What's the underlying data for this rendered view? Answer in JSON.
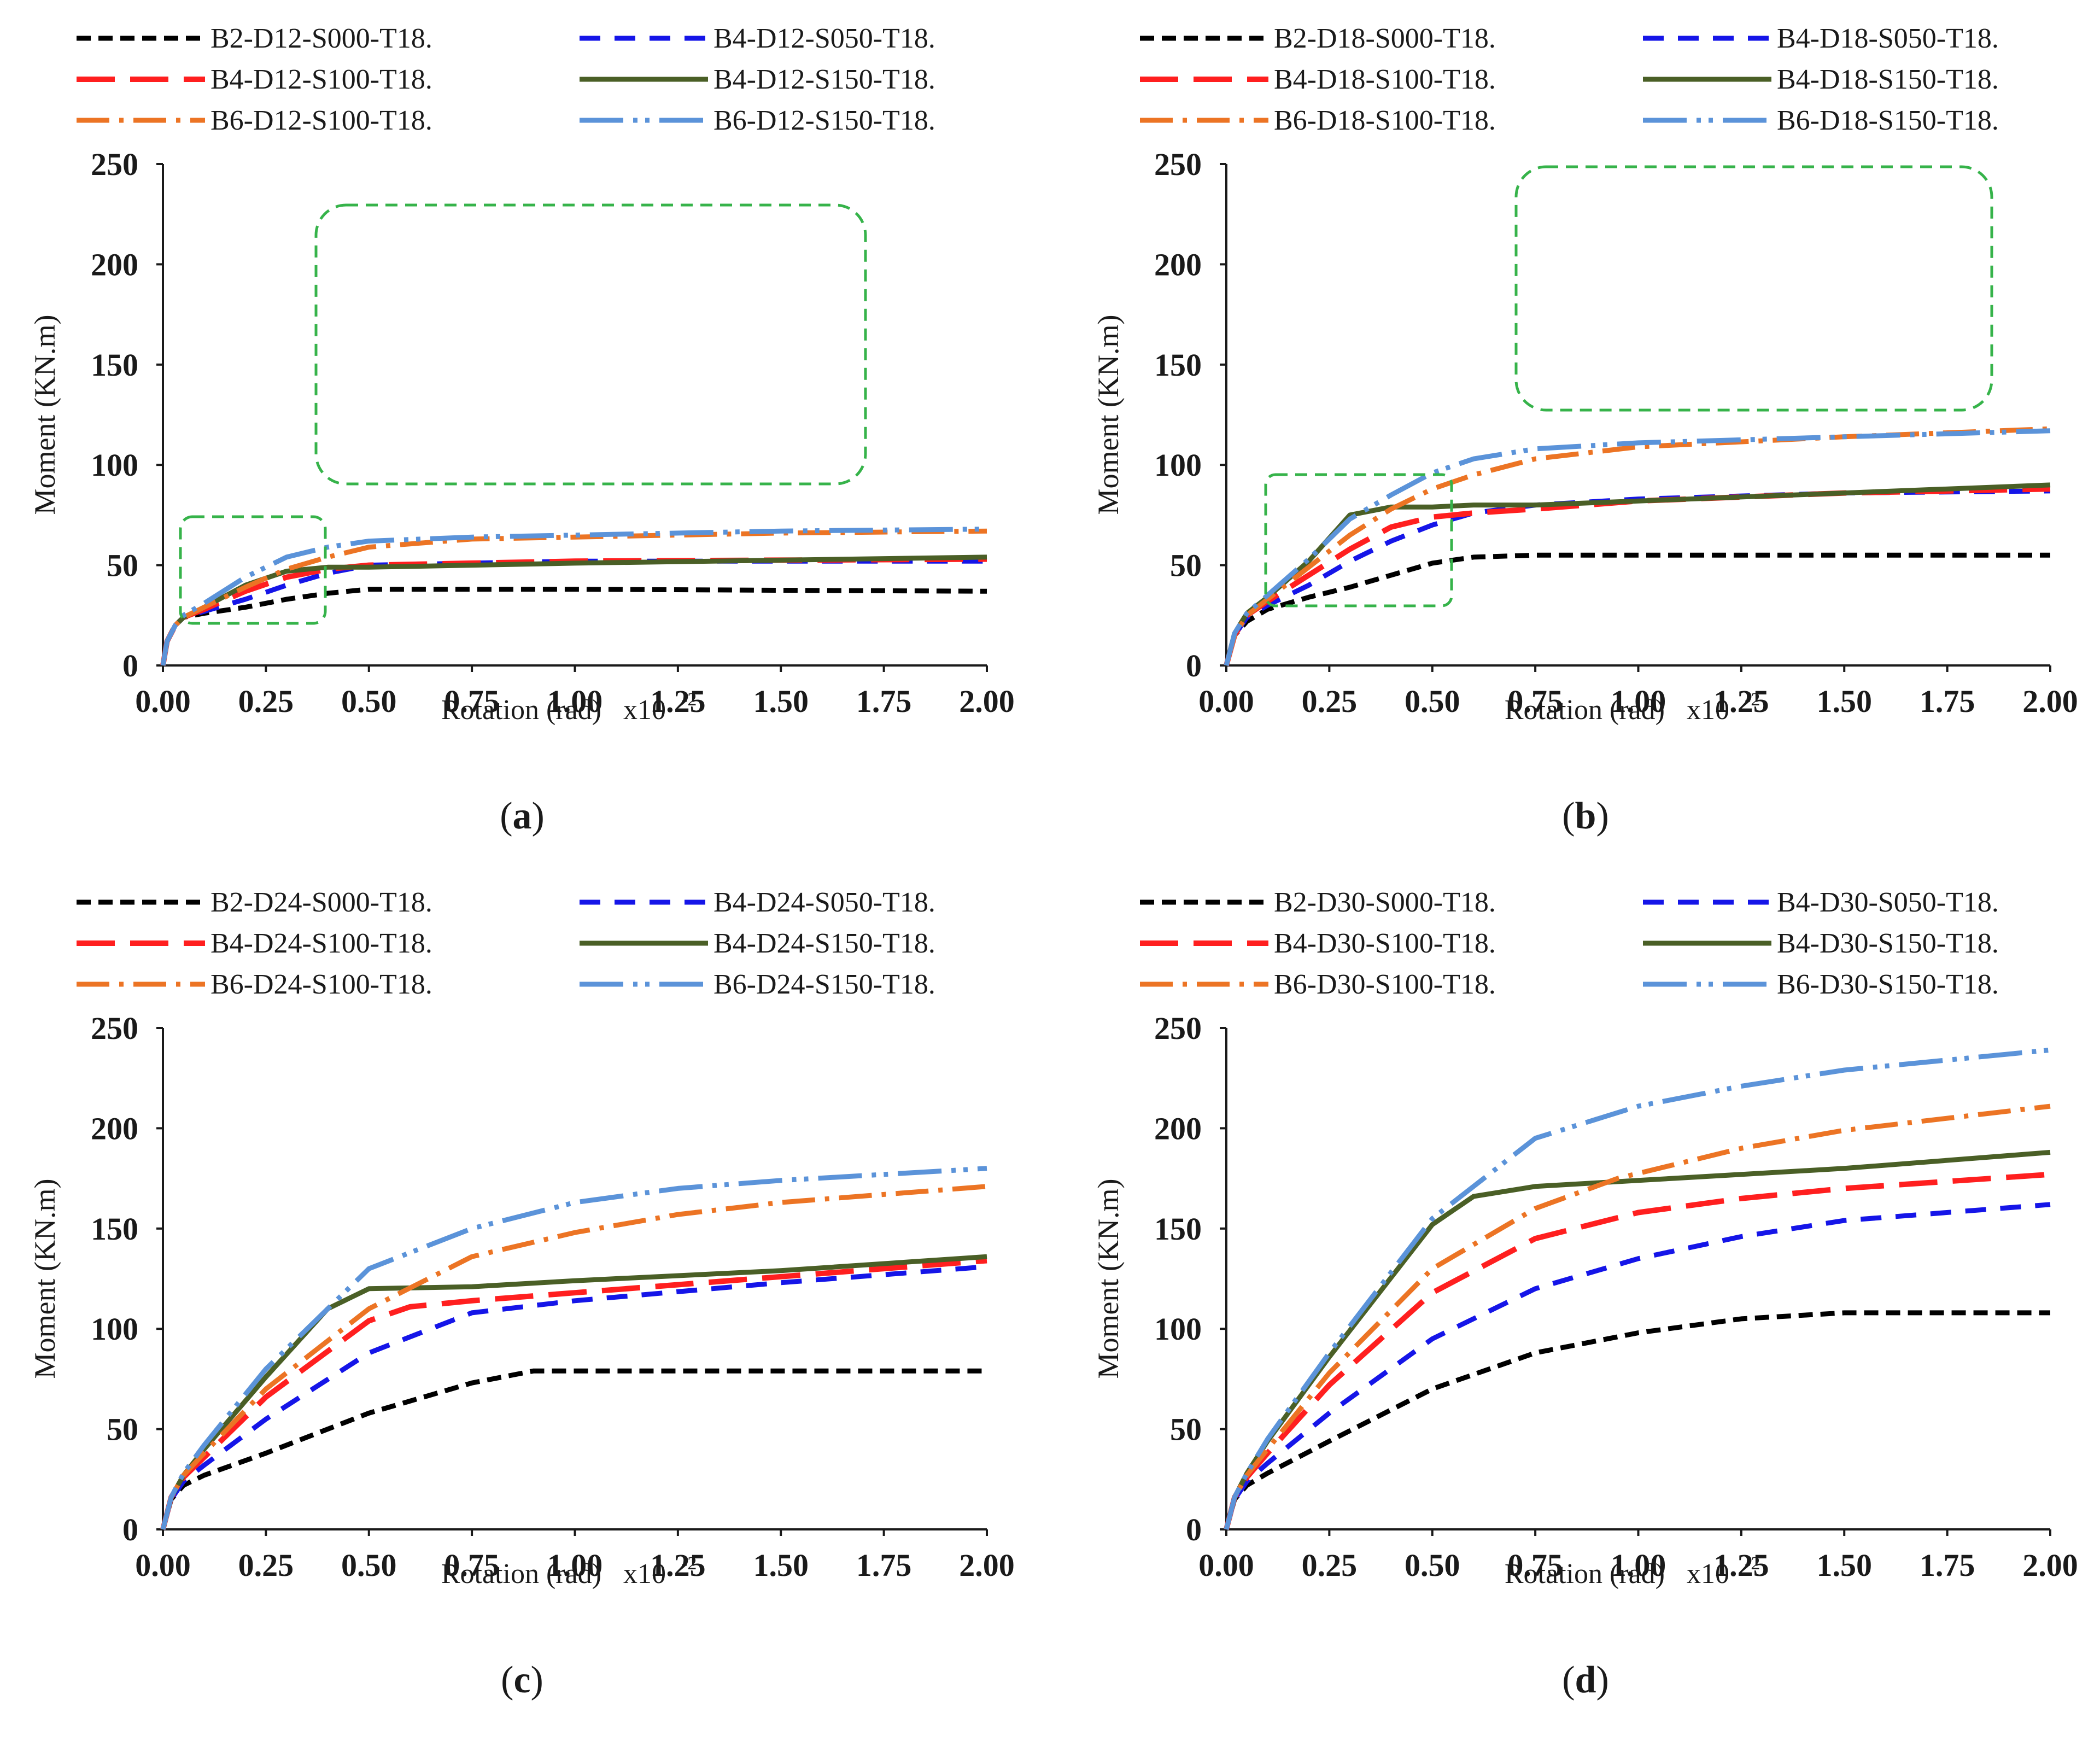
{
  "figure": {
    "axis_style": {
      "xlabel": "Rotation (rad)",
      "xlabel_scale": "x10",
      "xlabel_scale_exp": "-2",
      "ylabel": "Moment (KN.m)"
    },
    "series_styles": [
      {
        "key": "s1",
        "color": "#000000",
        "dash": "26 14",
        "width": 9
      },
      {
        "key": "s2",
        "color": "#1515e8",
        "dash": "38 26",
        "width": 9
      },
      {
        "key": "s3",
        "color": "#ff1f1f",
        "dash": "70 28",
        "width": 10
      },
      {
        "key": "s4",
        "color": "#4a5f26",
        "dash": "",
        "width": 9
      },
      {
        "key": "s5",
        "color": "#ec7424",
        "dash": "60 18 8 18",
        "width": 9
      },
      {
        "key": "s6",
        "color": "#5b93d9",
        "dash": "80 18 8 14 8 18",
        "width": 9
      }
    ]
  },
  "chart_data": [
    {
      "type": "line",
      "panel_label": "a",
      "xlabel": "Rotation (rad)",
      "ylabel": "Moment (KN.m)",
      "xlim": [
        0,
        2
      ],
      "ylim": [
        0,
        250
      ],
      "xticks": [
        "0.00",
        "0.25",
        "0.50",
        "0.75",
        "1.00",
        "1.25",
        "1.50",
        "1.75",
        "2.00"
      ],
      "yticks": [
        "0",
        "50",
        "100",
        "150",
        "200",
        "250"
      ],
      "legend": [
        "B2-D12-S000-T18.",
        "B4-D12-S050-T18.",
        "B4-D12-S100-T18.",
        "B4-D12-S150-T18.",
        "B6-D12-S100-T18.",
        "B6-D12-S150-T18."
      ],
      "series": [
        {
          "name": "B2-D12-S000-T18.",
          "x": [
            0,
            0.01,
            0.03,
            0.05,
            0.1,
            0.2,
            0.3,
            0.4,
            0.5,
            0.6,
            1.0,
            1.5,
            2.0
          ],
          "y": [
            0,
            12,
            20,
            24,
            26,
            29,
            33,
            36,
            38,
            38,
            38,
            37.5,
            37
          ]
        },
        {
          "name": "B4-D12-S050-T18.",
          "x": [
            0,
            0.01,
            0.03,
            0.05,
            0.1,
            0.2,
            0.3,
            0.4,
            0.5,
            0.75,
            1.0,
            1.5,
            2.0
          ],
          "y": [
            0,
            12,
            20,
            24,
            27,
            33,
            40,
            46,
            50,
            51,
            52,
            52,
            52
          ]
        },
        {
          "name": "B4-D12-S100-T18.",
          "x": [
            0,
            0.01,
            0.03,
            0.05,
            0.1,
            0.2,
            0.3,
            0.4,
            0.5,
            0.75,
            1.0,
            1.5,
            2.0
          ],
          "y": [
            0,
            12,
            20,
            24,
            28,
            37,
            44,
            48,
            50,
            51,
            52,
            52.5,
            53
          ]
        },
        {
          "name": "B4-D12-S150-T18.",
          "x": [
            0,
            0.01,
            0.03,
            0.05,
            0.1,
            0.2,
            0.3,
            0.4,
            0.5,
            0.75,
            1.0,
            1.5,
            2.0
          ],
          "y": [
            0,
            12,
            20,
            24,
            29,
            40,
            47,
            49,
            49,
            50,
            51,
            52.5,
            54
          ]
        },
        {
          "name": "B6-D12-S100-T18.",
          "x": [
            0,
            0.01,
            0.03,
            0.05,
            0.1,
            0.2,
            0.3,
            0.4,
            0.5,
            0.75,
            1.0,
            1.5,
            2.0
          ],
          "y": [
            0,
            12,
            20,
            24,
            29,
            39,
            48,
            54,
            59,
            63,
            64,
            66,
            67
          ]
        },
        {
          "name": "B6-D12-S150-T18.",
          "x": [
            0,
            0.01,
            0.03,
            0.05,
            0.1,
            0.2,
            0.3,
            0.4,
            0.5,
            0.75,
            1.0,
            1.5,
            2.0
          ],
          "y": [
            0,
            12,
            20,
            25,
            31,
            44,
            54,
            59,
            62,
            64,
            65,
            67,
            68
          ]
        }
      ]
    },
    {
      "type": "line",
      "panel_label": "b",
      "xlabel": "Rotation (rad)",
      "ylabel": "Moment (KN.m)",
      "xlim": [
        0,
        2
      ],
      "ylim": [
        0,
        250
      ],
      "xticks": [
        "0.00",
        "0.25",
        "0.50",
        "0.75",
        "1.00",
        "1.25",
        "1.50",
        "1.75",
        "2.00"
      ],
      "yticks": [
        "0",
        "50",
        "100",
        "150",
        "200",
        "250"
      ],
      "legend": [
        "B2-D18-S000-T18.",
        "B4-D18-S050-T18.",
        "B4-D18-S100-T18.",
        "B4-D18-S150-T18.",
        "B6-D18-S100-T18.",
        "B6-D18-S150-T18."
      ],
      "series": [
        {
          "name": "B2-D18-S000-T18.",
          "x": [
            0,
            0.02,
            0.05,
            0.1,
            0.2,
            0.3,
            0.4,
            0.5,
            0.6,
            0.75,
            1.0,
            1.5,
            2.0
          ],
          "y": [
            0,
            15,
            22,
            28,
            34,
            39,
            45,
            51,
            54,
            55,
            55,
            55,
            55
          ]
        },
        {
          "name": "B4-D18-S050-T18.",
          "x": [
            0,
            0.02,
            0.05,
            0.1,
            0.2,
            0.3,
            0.4,
            0.5,
            0.6,
            0.75,
            1.0,
            1.5,
            2.0
          ],
          "y": [
            0,
            15,
            24,
            30,
            40,
            52,
            62,
            70,
            76,
            80,
            83,
            86,
            87
          ]
        },
        {
          "name": "B4-D18-S100-T18.",
          "x": [
            0,
            0.02,
            0.05,
            0.1,
            0.2,
            0.3,
            0.4,
            0.5,
            0.6,
            0.75,
            1.0,
            1.5,
            2.0
          ],
          "y": [
            0,
            15,
            25,
            32,
            45,
            58,
            69,
            74,
            76,
            78,
            82,
            86,
            88
          ]
        },
        {
          "name": "B4-D18-S150-T18.",
          "x": [
            0,
            0.02,
            0.05,
            0.1,
            0.2,
            0.3,
            0.4,
            0.5,
            0.6,
            0.75,
            1.0,
            1.5,
            2.0
          ],
          "y": [
            0,
            16,
            26,
            34,
            52,
            75,
            79,
            79,
            80,
            80,
            82,
            86,
            90
          ]
        },
        {
          "name": "B6-D18-S100-T18.",
          "x": [
            0,
            0.02,
            0.05,
            0.1,
            0.2,
            0.3,
            0.4,
            0.5,
            0.6,
            0.75,
            1.0,
            1.5,
            2.0
          ],
          "y": [
            0,
            15,
            25,
            33,
            49,
            65,
            78,
            88,
            95,
            103,
            109,
            114,
            118
          ]
        },
        {
          "name": "B6-D18-S150-T18.",
          "x": [
            0,
            0.02,
            0.05,
            0.1,
            0.2,
            0.3,
            0.4,
            0.5,
            0.6,
            0.75,
            1.0,
            1.5,
            2.0
          ],
          "y": [
            0,
            16,
            26,
            35,
            53,
            73,
            85,
            96,
            103,
            108,
            111,
            114,
            117
          ]
        }
      ]
    },
    {
      "type": "line",
      "panel_label": "c",
      "xlabel": "Rotation (rad)",
      "ylabel": "Moment (KN.m)",
      "xlim": [
        0,
        2
      ],
      "ylim": [
        0,
        250
      ],
      "xticks": [
        "0.00",
        "0.25",
        "0.50",
        "0.75",
        "1.00",
        "1.25",
        "1.50",
        "1.75",
        "2.00"
      ],
      "yticks": [
        "0",
        "50",
        "100",
        "150",
        "200",
        "250"
      ],
      "legend": [
        "B2-D24-S000-T18.",
        "B4-D24-S050-T18.",
        "B4-D24-S100-T18.",
        "B4-D24-S150-T18.",
        "B6-D24-S100-T18.",
        "B6-D24-S150-T18."
      ],
      "series": [
        {
          "name": "B2-D24-S000-T18.",
          "x": [
            0,
            0.02,
            0.05,
            0.1,
            0.25,
            0.5,
            0.75,
            0.9,
            1.0,
            1.5,
            2.0
          ],
          "y": [
            0,
            15,
            22,
            27,
            38,
            58,
            73,
            79,
            79,
            79,
            79
          ]
        },
        {
          "name": "B4-D24-S050-T18.",
          "x": [
            0,
            0.02,
            0.05,
            0.1,
            0.25,
            0.5,
            0.75,
            1.0,
            1.5,
            2.0
          ],
          "y": [
            0,
            15,
            24,
            32,
            55,
            88,
            108,
            114,
            123,
            131
          ]
        },
        {
          "name": "B4-D24-S100-T18.",
          "x": [
            0,
            0.02,
            0.05,
            0.1,
            0.25,
            0.5,
            0.6,
            0.75,
            1.0,
            1.5,
            2.0
          ],
          "y": [
            0,
            16,
            26,
            36,
            66,
            104,
            111,
            114,
            118,
            126,
            134
          ]
        },
        {
          "name": "B4-D24-S150-T18.",
          "x": [
            0,
            0.02,
            0.05,
            0.1,
            0.25,
            0.4,
            0.5,
            0.75,
            1.0,
            1.5,
            2.0
          ],
          "y": [
            0,
            16,
            27,
            40,
            76,
            110,
            120,
            121,
            124,
            129,
            136
          ]
        },
        {
          "name": "B6-D24-S100-T18.",
          "x": [
            0,
            0.02,
            0.05,
            0.1,
            0.25,
            0.5,
            0.75,
            1.0,
            1.25,
            1.5,
            2.0
          ],
          "y": [
            0,
            16,
            27,
            38,
            70,
            110,
            136,
            148,
            157,
            163,
            171
          ]
        },
        {
          "name": "B6-D24-S150-T18.",
          "x": [
            0,
            0.02,
            0.05,
            0.1,
            0.25,
            0.5,
            0.75,
            1.0,
            1.25,
            1.5,
            2.0
          ],
          "y": [
            0,
            16,
            28,
            42,
            80,
            130,
            150,
            163,
            170,
            174,
            180
          ]
        }
      ]
    },
    {
      "type": "line",
      "panel_label": "d",
      "xlabel": "Rotation (rad)",
      "ylabel": "Moment (KN.m)",
      "xlim": [
        0,
        2
      ],
      "ylim": [
        0,
        250
      ],
      "xticks": [
        "0.00",
        "0.25",
        "0.50",
        "0.75",
        "1.00",
        "1.25",
        "1.50",
        "1.75",
        "2.00"
      ],
      "yticks": [
        "0",
        "50",
        "100",
        "150",
        "200",
        "250"
      ],
      "legend": [
        "B2-D30-S000-T18.",
        "B4-D30-S050-T18.",
        "B4-D30-S100-T18.",
        "B4-D30-S150-T18.",
        "B6-D30-S100-T18.",
        "B6-D30-S150-T18."
      ],
      "series": [
        {
          "name": "B2-D30-S000-T18.",
          "x": [
            0,
            0.02,
            0.05,
            0.1,
            0.25,
            0.5,
            0.75,
            1.0,
            1.25,
            1.5,
            2.0
          ],
          "y": [
            0,
            15,
            22,
            28,
            44,
            70,
            88,
            98,
            105,
            108,
            108
          ]
        },
        {
          "name": "B4-D30-S050-T18.",
          "x": [
            0,
            0.02,
            0.05,
            0.1,
            0.25,
            0.5,
            0.75,
            1.0,
            1.25,
            1.5,
            2.0
          ],
          "y": [
            0,
            15,
            24,
            33,
            58,
            95,
            120,
            135,
            146,
            154,
            162
          ]
        },
        {
          "name": "B4-D30-S100-T18.",
          "x": [
            0,
            0.02,
            0.05,
            0.1,
            0.25,
            0.5,
            0.75,
            1.0,
            1.25,
            1.5,
            2.0
          ],
          "y": [
            0,
            16,
            26,
            38,
            72,
            118,
            145,
            158,
            165,
            170,
            177
          ]
        },
        {
          "name": "B4-D30-S150-T18.",
          "x": [
            0,
            0.02,
            0.05,
            0.1,
            0.25,
            0.5,
            0.6,
            0.75,
            1.0,
            1.5,
            2.0
          ],
          "y": [
            0,
            16,
            28,
            44,
            86,
            152,
            166,
            171,
            174,
            180,
            188
          ]
        },
        {
          "name": "B6-D30-S100-T18.",
          "x": [
            0,
            0.02,
            0.05,
            0.1,
            0.25,
            0.5,
            0.75,
            0.95,
            1.25,
            1.5,
            2.0
          ],
          "y": [
            0,
            16,
            27,
            40,
            78,
            130,
            160,
            175,
            190,
            199,
            211
          ]
        },
        {
          "name": "B6-D30-S150-T18.",
          "x": [
            0,
            0.02,
            0.05,
            0.1,
            0.25,
            0.5,
            0.75,
            1.0,
            1.25,
            1.5,
            2.0
          ],
          "y": [
            0,
            16,
            28,
            45,
            88,
            155,
            195,
            211,
            221,
            229,
            239
          ]
        }
      ]
    }
  ]
}
